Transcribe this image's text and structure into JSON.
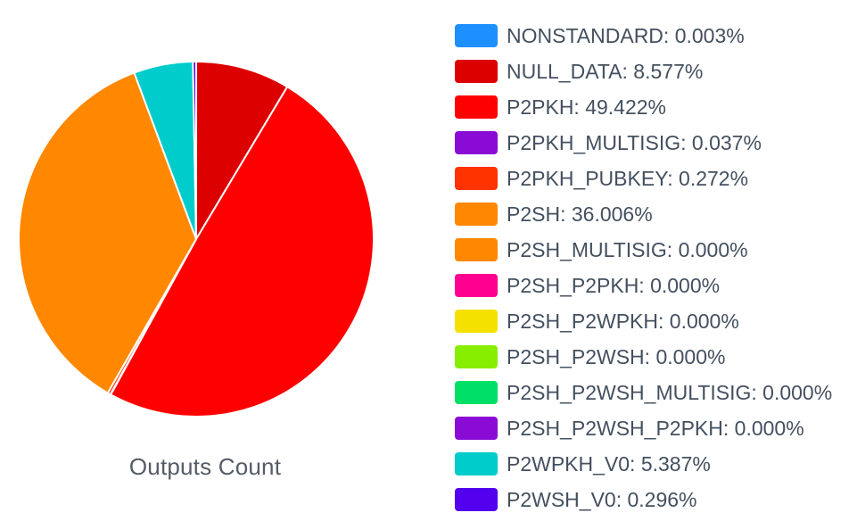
{
  "chart_data": {
    "type": "pie",
    "title": "Outputs Count",
    "legend_position": "right",
    "slices": [
      {
        "label": "NONSTANDARD",
        "value": 0.003,
        "color": "#1e8fff"
      },
      {
        "label": "NULL_DATA",
        "value": 8.577,
        "color": "#dd0000"
      },
      {
        "label": "P2PKH",
        "value": 49.422,
        "color": "#ff0000"
      },
      {
        "label": "P2PKH_MULTISIG",
        "value": 0.037,
        "color": "#8b0bd6"
      },
      {
        "label": "P2PKH_PUBKEY",
        "value": 0.272,
        "color": "#ff3300"
      },
      {
        "label": "P2SH",
        "value": 36.006,
        "color": "#ff8800"
      },
      {
        "label": "P2SH_MULTISIG",
        "value": 0.0,
        "color": "#ff8800"
      },
      {
        "label": "P2SH_P2PKH",
        "value": 0.0,
        "color": "#ff0090"
      },
      {
        "label": "P2SH_P2WPKH",
        "value": 0.0,
        "color": "#f5e100"
      },
      {
        "label": "P2SH_P2WSH",
        "value": 0.0,
        "color": "#88ee00"
      },
      {
        "label": "P2SH_P2WSH_MULTISIG",
        "value": 0.0,
        "color": "#00e066"
      },
      {
        "label": "P2SH_P2WSH_P2PKH",
        "value": 0.0,
        "color": "#8b0bd6"
      },
      {
        "label": "P2WPKH_V0",
        "value": 5.387,
        "color": "#00cccc"
      },
      {
        "label": "P2WSH_V0",
        "value": 0.296,
        "color": "#5200ee"
      }
    ],
    "legend": [
      {
        "text": "NONSTANDARD: 0.003%"
      },
      {
        "text": "NULL_DATA: 8.577%"
      },
      {
        "text": "P2PKH: 49.422%"
      },
      {
        "text": "P2PKH_MULTISIG: 0.037%"
      },
      {
        "text": "P2PKH_PUBKEY: 0.272%"
      },
      {
        "text": "P2SH: 36.006%"
      },
      {
        "text": "P2SH_MULTISIG: 0.000%"
      },
      {
        "text": "P2SH_P2PKH: 0.000%"
      },
      {
        "text": "P2SH_P2WPKH: 0.000%"
      },
      {
        "text": "P2SH_P2WSH: 0.000%"
      },
      {
        "text": "P2SH_P2WSH_MULTISIG: 0.000%"
      },
      {
        "text": "P2SH_P2WSH_P2PKH: 0.000%"
      },
      {
        "text": "P2WPKH_V0: 5.387%"
      },
      {
        "text": "P2WSH_V0: 0.296%"
      }
    ]
  }
}
